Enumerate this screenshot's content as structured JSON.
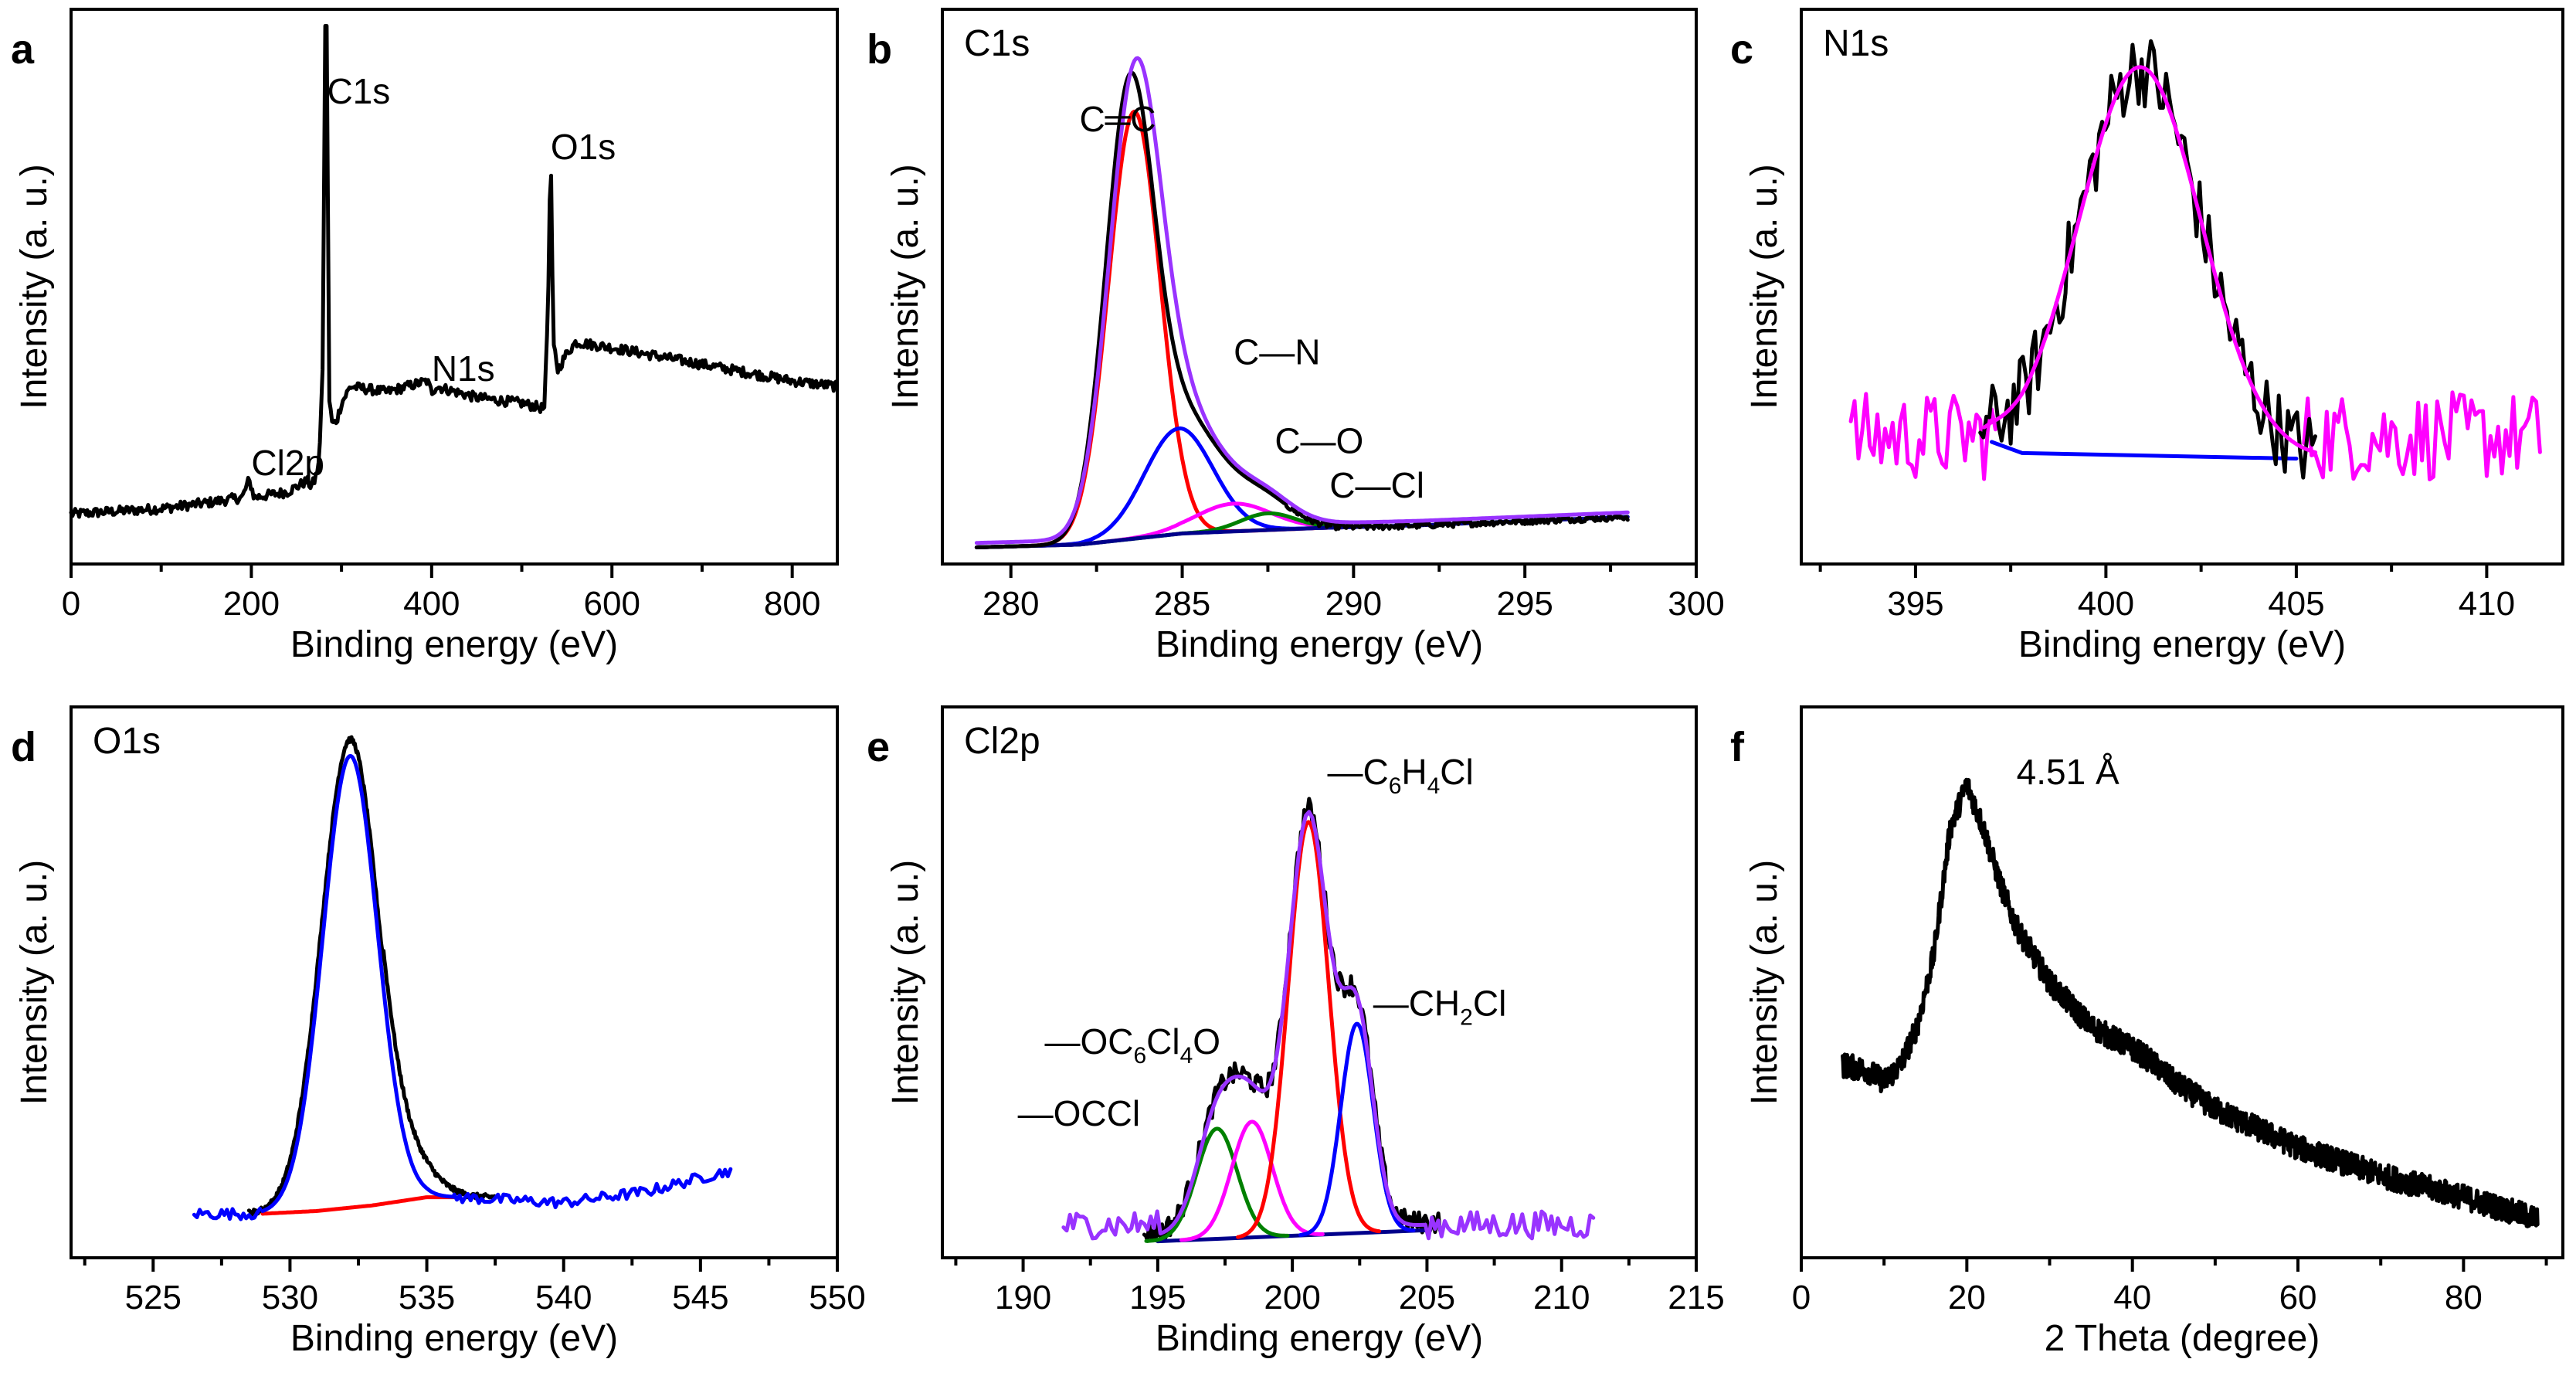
{
  "chart_data": [
    {
      "panel": "a",
      "type": "line",
      "title": "",
      "xlabel": "Binding energy (eV)",
      "ylabel": "Intensity (a. u.)",
      "xlim": [
        0,
        850
      ],
      "ylim": [
        0,
        1.0
      ],
      "xticks": [
        "0",
        "200",
        "400",
        "600",
        "800"
      ],
      "xtick_values": [
        0,
        200,
        400,
        600,
        800
      ],
      "annotations": [
        {
          "text": "C1s",
          "x": 284,
          "y": 0.83
        },
        {
          "text": "O1s",
          "x": 532,
          "y": 0.73
        },
        {
          "text": "N1s",
          "x": 400,
          "y": 0.33
        },
        {
          "text": "Cl2p",
          "x": 200,
          "y": 0.16
        }
      ],
      "series": [
        {
          "name": "survey",
          "color": "#000000",
          "x": [
            0,
            100,
            150,
            190,
            197,
            200,
            203,
            240,
            262,
            266,
            270,
            275,
            279,
            282,
            284,
            286,
            290,
            295,
            300,
            310,
            350,
            395,
            400,
            405,
            450,
            500,
            525,
            529,
            532,
            535,
            540,
            550,
            560,
            600,
            700,
            800,
            850
          ],
          "y": [
            0.09,
            0.1,
            0.11,
            0.12,
            0.15,
            0.14,
            0.12,
            0.13,
            0.15,
            0.14,
            0.15,
            0.18,
            0.35,
            0.97,
            0.97,
            0.3,
            0.25,
            0.26,
            0.29,
            0.32,
            0.31,
            0.33,
            0.31,
            0.32,
            0.3,
            0.29,
            0.28,
            0.45,
            0.76,
            0.4,
            0.35,
            0.38,
            0.4,
            0.39,
            0.36,
            0.33,
            0.32
          ]
        }
      ]
    },
    {
      "panel": "b",
      "type": "line",
      "title": "C1s",
      "xlabel": "Binding energy (eV)",
      "ylabel": "Intensity (a. u.)",
      "xlim": [
        278,
        300
      ],
      "ylim": [
        0,
        1.0
      ],
      "xticks": [
        "280",
        "285",
        "290",
        "295",
        "300"
      ],
      "xtick_values": [
        280,
        285,
        290,
        295,
        300
      ],
      "annotations": [
        {
          "text": "C═C",
          "x": 282,
          "y": 0.78
        },
        {
          "text": "C—N",
          "x": 286.5,
          "y": 0.36
        },
        {
          "text": "C—O",
          "x": 287.7,
          "y": 0.2
        },
        {
          "text": "C—Cl",
          "x": 289.3,
          "y": 0.12
        }
      ],
      "components": [
        {
          "name": "C═C",
          "color": "#ff0000",
          "center": 283.6,
          "height": 0.77,
          "sigma": 0.75
        },
        {
          "name": "C—N",
          "color": "#0000ff",
          "center": 284.9,
          "height": 0.19,
          "sigma": 1.0
        },
        {
          "name": "C—O",
          "color": "#ff00ff",
          "center": 286.5,
          "height": 0.05,
          "sigma": 1.1
        },
        {
          "name": "C—Cl",
          "color": "#008000",
          "center": 287.5,
          "height": 0.03,
          "sigma": 0.8
        },
        {
          "name": "background",
          "color": "#00008b",
          "type": "background",
          "x": [
            279,
            282,
            285,
            287,
            289,
            292,
            298
          ],
          "y": [
            0.03,
            0.035,
            0.055,
            0.06,
            0.065,
            0.07,
            0.085
          ]
        },
        {
          "name": "fit envelope",
          "color": "#9933ff",
          "type": "envelope"
        },
        {
          "name": "raw",
          "color": "#000000",
          "type": "raw",
          "center": 283.45,
          "height": 0.77,
          "sigma": 0.7
        }
      ]
    },
    {
      "panel": "c",
      "type": "line",
      "title": "N1s",
      "xlabel": "Binding energy (eV)",
      "ylabel": "Intensity (a. u.)",
      "xlim": [
        392,
        412
      ],
      "ylim": [
        0,
        1.0
      ],
      "xticks": [
        "395",
        "400",
        "405",
        "410"
      ],
      "xtick_values": [
        395,
        400,
        405,
        410
      ],
      "annotations": [],
      "components": [
        {
          "name": "fit",
          "color": "#ff00ff",
          "center": 400.9,
          "height": 0.7,
          "sigma": 1.6,
          "base_from": 397.6,
          "base_to": 405.0,
          "baseline_y": [
            0.2,
            0.19
          ]
        },
        {
          "name": "background",
          "color": "#0000ff",
          "x": [
            397.0,
            397.8,
            405.0
          ],
          "y": [
            0.22,
            0.2,
            0.19
          ]
        },
        {
          "name": "noise-left",
          "color": "#ff00ff",
          "x_range": [
            393.3,
            397.2
          ],
          "level": 0.23,
          "amp": 0.08
        },
        {
          "name": "noise-right",
          "color": "#ff00ff",
          "x_range": [
            405.2,
            411.5
          ],
          "level": 0.23,
          "amp": 0.08
        },
        {
          "name": "raw",
          "color": "#000000",
          "x_range": [
            396.7,
            405.5
          ]
        }
      ]
    },
    {
      "panel": "d",
      "type": "line",
      "title": "O1s",
      "xlabel": "Binding energy (eV)",
      "ylabel": "Intensity (a. u.)",
      "xlim": [
        522,
        550
      ],
      "ylim": [
        0,
        1.0
      ],
      "xticks": [
        "525",
        "530",
        "535",
        "540",
        "545",
        "550"
      ],
      "xtick_values": [
        525,
        530,
        535,
        540,
        545,
        550
      ],
      "annotations": [],
      "components": [
        {
          "name": "fit",
          "color": "#0000ff",
          "center": 532.2,
          "height": 0.82,
          "sigma": 1.0
        },
        {
          "name": "background",
          "color": "#ff0000",
          "x": [
            529.0,
            531.0,
            533.0,
            535.0,
            536.0
          ],
          "y": [
            0.08,
            0.085,
            0.095,
            0.11,
            0.11
          ]
        },
        {
          "name": "raw",
          "color": "#000000",
          "center": 532.2,
          "height": 0.85,
          "sigma": 1.05
        },
        {
          "name": "tail",
          "color": "#0000ff",
          "x": [
            526.5,
            529.0,
            536.0,
            540.0,
            543.0,
            546.2
          ],
          "y": [
            0.08,
            0.08,
            0.11,
            0.1,
            0.12,
            0.16
          ]
        }
      ]
    },
    {
      "panel": "e",
      "type": "line",
      "title": "Cl2p",
      "xlabel": "Binding energy (eV)",
      "ylabel": "Intensity (a. u.)",
      "xlim": [
        187,
        215
      ],
      "ylim": [
        0,
        1.0
      ],
      "xticks": [
        "190",
        "195",
        "200",
        "205",
        "210",
        "215"
      ],
      "xtick_values": [
        190,
        195,
        200,
        205,
        210,
        215
      ],
      "annotations": [
        {
          "text": "—C",
          "sub1": "6",
          "mid": "H",
          "sub2": "4",
          "tail": "Cl",
          "x": 201.3,
          "y": 0.86
        },
        {
          "text": "—CH",
          "sub1": "2",
          "tail": "Cl",
          "x": 203.0,
          "y": 0.44
        },
        {
          "text": "—OC",
          "sub1": "6",
          "mid": "Cl",
          "sub2": "4",
          "tail": "O",
          "x": 190.8,
          "y": 0.37
        },
        {
          "text": "—OCCl",
          "x": 189.8,
          "y": 0.24
        }
      ],
      "components": [
        {
          "name": "—OCCl",
          "color": "#008000",
          "center": 197.2,
          "height": 0.2,
          "sigma": 0.75
        },
        {
          "name": "—OC6Cl4O",
          "color": "#ff00ff",
          "center": 198.5,
          "height": 0.21,
          "sigma": 0.75
        },
        {
          "name": "—C6H4Cl",
          "color": "#ff0000",
          "center": 200.6,
          "height": 0.75,
          "sigma": 0.75
        },
        {
          "name": "—CH2Cl",
          "color": "#0000ff",
          "center": 202.4,
          "height": 0.38,
          "sigma": 0.6
        },
        {
          "name": "background",
          "color": "#00008b",
          "x": [
            195.0,
            205.0
          ],
          "y": [
            0.03,
            0.05
          ]
        },
        {
          "name": "fit envelope",
          "color": "#9933ff"
        },
        {
          "name": "raw",
          "color": "#000000"
        }
      ]
    },
    {
      "panel": "f",
      "type": "line",
      "title": "",
      "xlabel": "2 Theta (degree)",
      "ylabel": "Intensity (a. u.)",
      "xlim": [
        0,
        92
      ],
      "ylim": [
        0,
        1.0
      ],
      "xticks": [
        "0",
        "20",
        "40",
        "60",
        "80"
      ],
      "xtick_values": [
        0,
        20,
        40,
        60,
        80
      ],
      "annotations": [
        {
          "text": "4.51 Å",
          "x": 26,
          "y": 0.86
        }
      ],
      "series": [
        {
          "name": "XRD",
          "color": "#000000",
          "x": [
            5,
            8,
            10,
            12,
            14,
            16,
            18,
            20,
            22,
            24,
            26,
            30,
            35,
            40,
            42,
            45,
            50,
            60,
            70,
            80,
            89
          ],
          "y": [
            0.35,
            0.34,
            0.32,
            0.35,
            0.42,
            0.55,
            0.78,
            0.86,
            0.78,
            0.68,
            0.6,
            0.5,
            0.42,
            0.38,
            0.36,
            0.32,
            0.27,
            0.2,
            0.15,
            0.11,
            0.07
          ]
        }
      ]
    }
  ],
  "panels": {
    "a": {
      "letter": "a"
    },
    "b": {
      "letter": "b"
    },
    "c": {
      "letter": "c"
    },
    "d": {
      "letter": "d"
    },
    "e": {
      "letter": "e"
    },
    "f": {
      "letter": "f"
    }
  }
}
